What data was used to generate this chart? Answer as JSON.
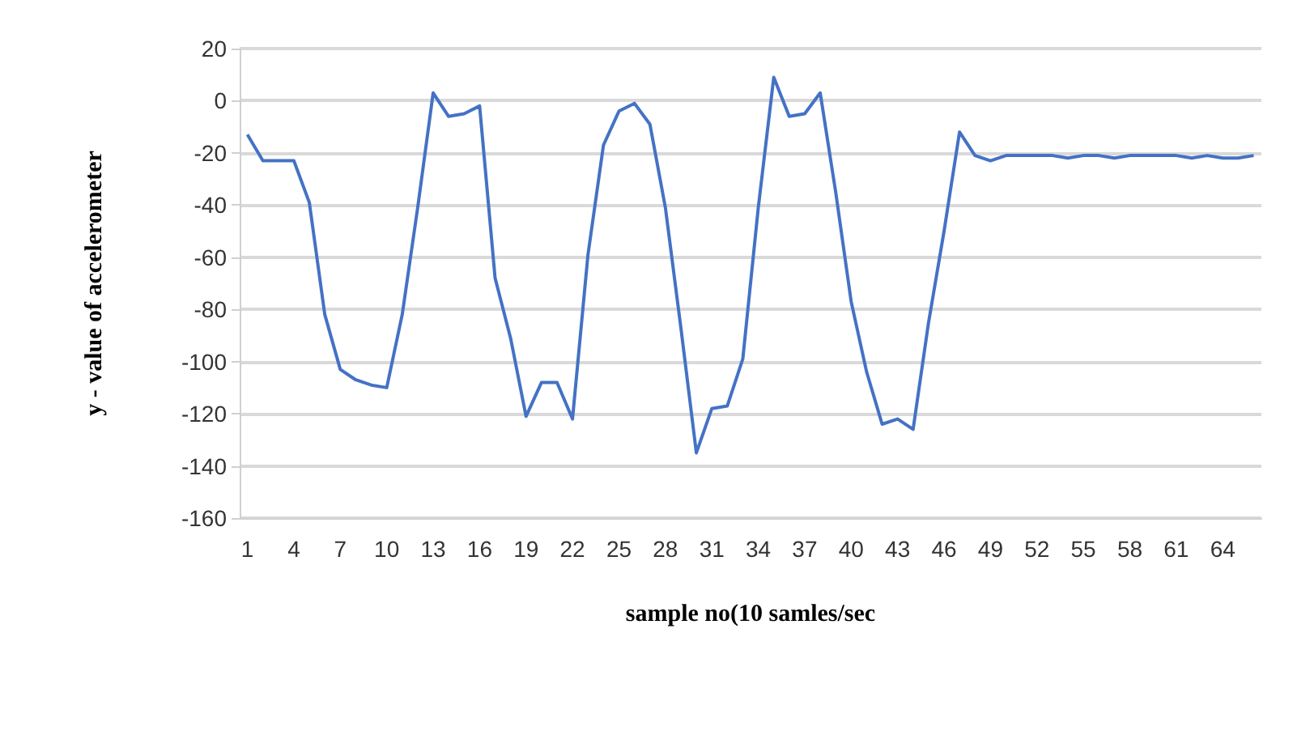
{
  "chart_data": {
    "type": "line",
    "xlabel": "sample no(10 samles/sec",
    "ylabel": "y - value of accelerometer",
    "categories": [
      "1",
      null,
      null,
      "4",
      null,
      null,
      "7",
      null,
      null,
      "10",
      null,
      null,
      "13",
      null,
      null,
      "16",
      null,
      null,
      "19",
      null,
      null,
      "22",
      null,
      null,
      "25",
      null,
      null,
      "28",
      null,
      null,
      "31",
      null,
      null,
      "34",
      null,
      null,
      "37",
      null,
      null,
      "40",
      null,
      null,
      "43",
      null,
      null,
      "46",
      null,
      null,
      "49",
      null,
      null,
      "52",
      null,
      null,
      "55",
      null,
      null,
      "58",
      null,
      null,
      "61",
      null,
      null,
      "64",
      null,
      null
    ],
    "series": [
      {
        "color": "#4472c4",
        "values": [
          -13,
          -23,
          -23,
          -23,
          -39,
          -82,
          -103,
          -107,
          -109,
          -110,
          -82,
          -41,
          3,
          -6,
          -5,
          -2,
          -68,
          -91,
          -121,
          -108,
          -108,
          -122,
          -59,
          -17,
          -4,
          -1,
          -9,
          -41,
          -87,
          -135,
          -118,
          -117,
          -99,
          -41,
          9,
          -6,
          -5,
          3,
          -35,
          -77,
          -104,
          -124,
          -122,
          -126,
          -85,
          -50,
          -12,
          -21,
          -23,
          -21,
          -21,
          -21,
          -21,
          -22,
          -21,
          -21,
          -22,
          -21,
          -21,
          -21,
          -21,
          -22,
          -21,
          -22,
          -22,
          -21
        ]
      }
    ],
    "ylim": [
      -160,
      20
    ],
    "yticks": [
      -160,
      -140,
      -120,
      -100,
      -80,
      -60,
      -40,
      -20,
      0,
      20
    ],
    "grid": "y",
    "marker": "none",
    "line_style": "solid"
  }
}
